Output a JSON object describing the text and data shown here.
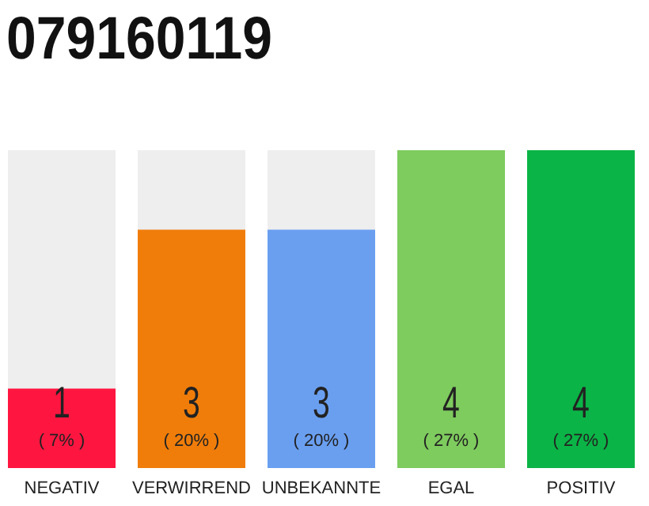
{
  "chart_data": {
    "type": "bar",
    "title": "079160119",
    "categories": [
      "NEGATIV",
      "VERWIRREND",
      "UNBEKANNTE",
      "EGAL",
      "POSITIV"
    ],
    "values": [
      1,
      3,
      3,
      4,
      4
    ],
    "colors": [
      "#ff1640",
      "#f07d0a",
      "#6a9ff0",
      "#7ecb5e",
      "#0bb446"
    ],
    "value_labels": [
      "1\n( 7% )",
      "3\n( 20% )",
      "3\n( 20% )",
      "4\n( 27% )",
      "4\n( 27% )"
    ],
    "ylim": [
      0,
      4
    ],
    "tick_labels": "x"
  }
}
